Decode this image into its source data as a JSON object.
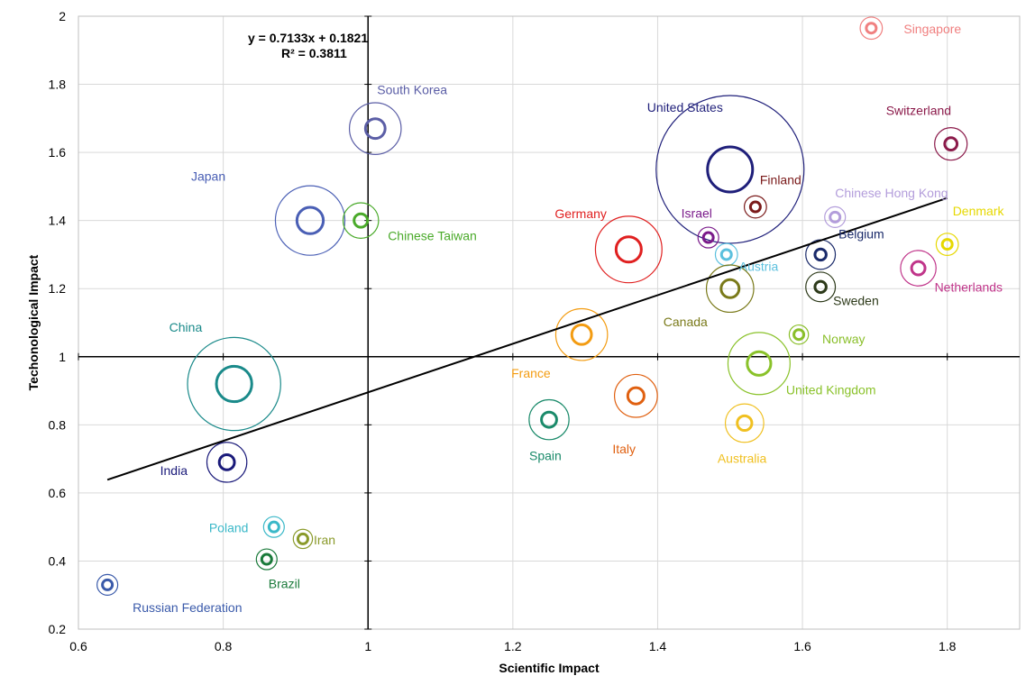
{
  "chart_data": {
    "type": "scatter",
    "title": "",
    "xlabel": "Scientific Impact",
    "ylabel": "Techonological Impact",
    "xlim": [
      0.6,
      1.9
    ],
    "ylim": [
      0.2,
      2.0
    ],
    "x_ticks": [
      "0.6",
      "0.8",
      "1",
      "1.2",
      "1.4",
      "1.6",
      "1.8"
    ],
    "y_ticks": [
      "0.2",
      "0.4",
      "0.6",
      "0.8",
      "1",
      "1.2",
      "1.4",
      "1.6",
      "1.8",
      "2"
    ],
    "grid": true,
    "reference_lines": {
      "x": 1,
      "y": 1
    },
    "trendline": {
      "equation": "y = 0.7133x + 0.1821",
      "r_squared": "R² = 0.3811",
      "x_range": [
        0.64,
        1.8
      ]
    },
    "points": [
      {
        "name": "Singapore",
        "x": 1.695,
        "y": 1.965,
        "color": "#f08080",
        "outer": 0.15
      },
      {
        "name": "United States",
        "x": 1.5,
        "y": 1.55,
        "color": "#1f1f7a",
        "outer": 1.0
      },
      {
        "name": "Switzerland",
        "x": 1.805,
        "y": 1.625,
        "color": "#8b1a4a",
        "outer": 0.22
      },
      {
        "name": "South Korea",
        "x": 1.01,
        "y": 1.67,
        "color": "#5b5ea6",
        "outer": 0.35
      },
      {
        "name": "Japan",
        "x": 0.92,
        "y": 1.4,
        "color": "#4a5fb5",
        "outer": 0.47
      },
      {
        "name": "Chinese Taiwan",
        "x": 0.99,
        "y": 1.4,
        "color": "#4aaa2a",
        "outer": 0.24
      },
      {
        "name": "Finland",
        "x": 1.535,
        "y": 1.44,
        "color": "#7a1a1a",
        "outer": 0.15
      },
      {
        "name": "Chinese Hong Kong",
        "x": 1.645,
        "y": 1.41,
        "color": "#b39ddb",
        "outer": 0.14
      },
      {
        "name": "Denmark",
        "x": 1.8,
        "y": 1.33,
        "color": "#e6d800",
        "outer": 0.15
      },
      {
        "name": "Germany",
        "x": 1.36,
        "y": 1.315,
        "color": "#e02020",
        "outer": 0.45
      },
      {
        "name": "Israel",
        "x": 1.47,
        "y": 1.35,
        "color": "#7a1a8a",
        "outer": 0.14
      },
      {
        "name": "Austria",
        "x": 1.495,
        "y": 1.3,
        "color": "#5bc0de",
        "outer": 0.15
      },
      {
        "name": "Belgium",
        "x": 1.625,
        "y": 1.3,
        "color": "#1a2a6a",
        "outer": 0.2
      },
      {
        "name": "Netherlands",
        "x": 1.76,
        "y": 1.26,
        "color": "#c0358a",
        "outer": 0.24
      },
      {
        "name": "Sweden",
        "x": 1.625,
        "y": 1.205,
        "color": "#2d3a1a",
        "outer": 0.2
      },
      {
        "name": "Canada",
        "x": 1.5,
        "y": 1.2,
        "color": "#7a7a1a",
        "outer": 0.32
      },
      {
        "name": "Norway",
        "x": 1.595,
        "y": 1.065,
        "color": "#8abf2a",
        "outer": 0.13
      },
      {
        "name": "France",
        "x": 1.295,
        "y": 1.065,
        "color": "#f39c12",
        "outer": 0.35
      },
      {
        "name": "China",
        "x": 0.815,
        "y": 0.92,
        "color": "#1a8a8a",
        "outer": 0.63
      },
      {
        "name": "United Kingdom",
        "x": 1.54,
        "y": 0.98,
        "color": "#8ac22a",
        "outer": 0.42
      },
      {
        "name": "Spain",
        "x": 1.25,
        "y": 0.815,
        "color": "#1a8a6a",
        "outer": 0.27
      },
      {
        "name": "Italy",
        "x": 1.37,
        "y": 0.885,
        "color": "#e06010",
        "outer": 0.29
      },
      {
        "name": "Australia",
        "x": 1.52,
        "y": 0.805,
        "color": "#f0c020",
        "outer": 0.26
      },
      {
        "name": "India",
        "x": 0.805,
        "y": 0.69,
        "color": "#1a1a7a",
        "outer": 0.27
      },
      {
        "name": "Poland",
        "x": 0.87,
        "y": 0.5,
        "color": "#3ab8c8",
        "outer": 0.14
      },
      {
        "name": "Iran",
        "x": 0.91,
        "y": 0.465,
        "color": "#8a9a2a",
        "outer": 0.13
      },
      {
        "name": "Brazil",
        "x": 0.86,
        "y": 0.405,
        "color": "#1a7a3a",
        "outer": 0.14
      },
      {
        "name": "Russian Federation",
        "x": 0.64,
        "y": 0.33,
        "color": "#3a5aaa",
        "outer": 0.14
      }
    ]
  }
}
